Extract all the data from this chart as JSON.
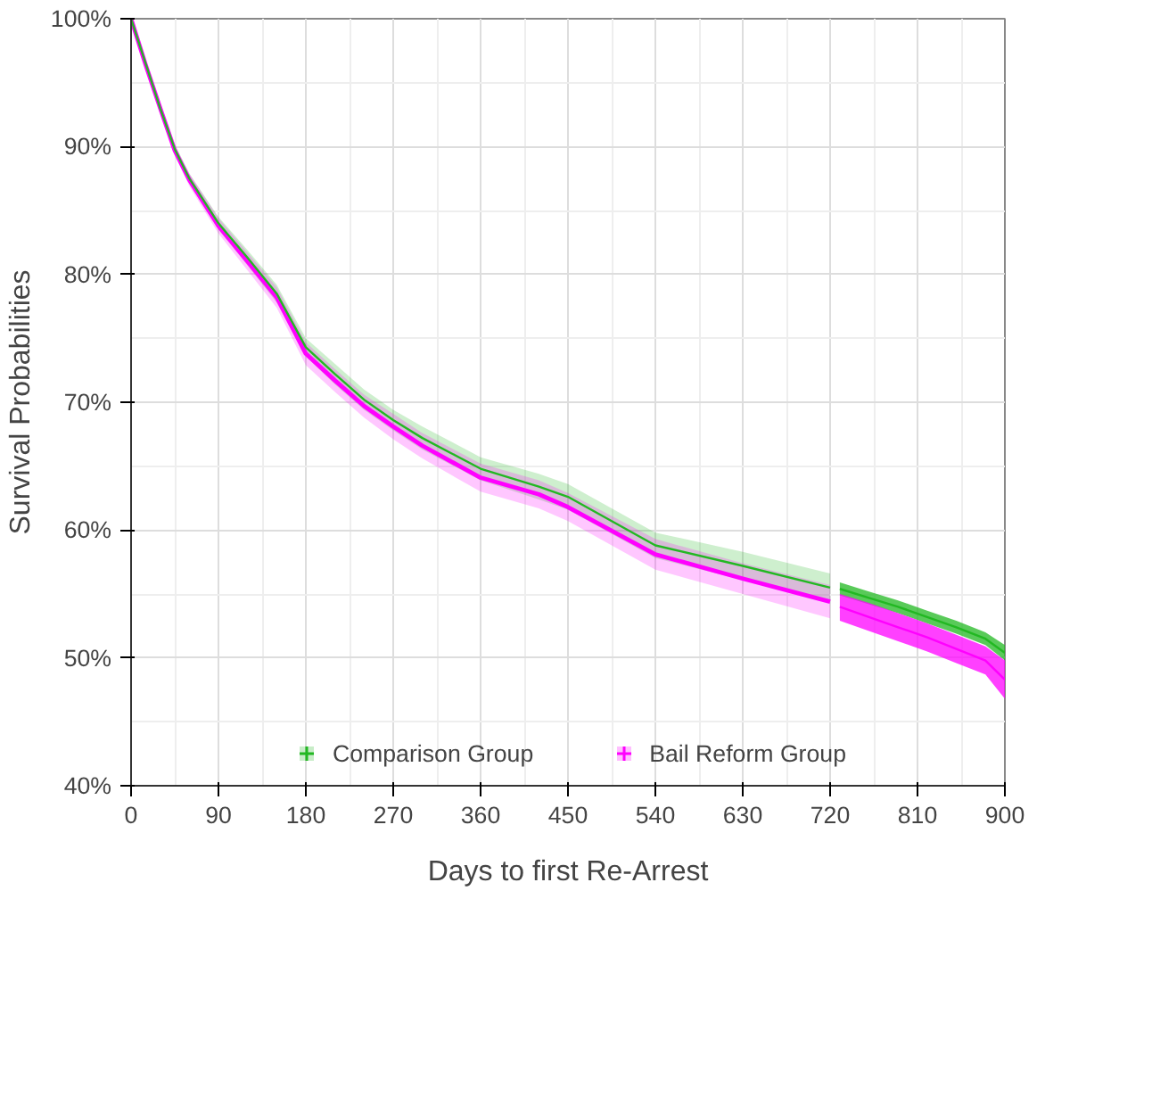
{
  "chart_data": {
    "type": "line",
    "xlabel": "Days to first Re-Arrest",
    "ylabel": "Survival Probabilities",
    "x": [
      0,
      15,
      30,
      45,
      60,
      90,
      120,
      150,
      180,
      210,
      240,
      270,
      300,
      360,
      420,
      450,
      540,
      630,
      720
    ],
    "series": [
      {
        "name": "Comparison Group",
        "color": "#22b822",
        "values": [
          100,
          96.5,
          93,
          89.8,
          87.5,
          84,
          81.3,
          78.5,
          74.3,
          72.2,
          70.2,
          68.6,
          67.2,
          64.8,
          63.4,
          62.6,
          58.8,
          57.2,
          55.5
        ],
        "lower": [
          100,
          96.3,
          92.7,
          89.4,
          87.1,
          83.5,
          80.7,
          77.8,
          73.6,
          71.4,
          69.4,
          67.8,
          66.3,
          63.9,
          62.4,
          61.6,
          57.8,
          56.1,
          54.4
        ],
        "upper": [
          100,
          96.7,
          93.3,
          90.2,
          87.9,
          84.5,
          81.9,
          79.2,
          75.0,
          73.0,
          71.0,
          69.4,
          68.1,
          65.7,
          64.4,
          63.6,
          59.8,
          58.3,
          56.6
        ]
      },
      {
        "name": "Bail Reform Group",
        "color": "#ff00ff",
        "values": [
          100,
          96.4,
          93,
          89.7,
          87.4,
          83.8,
          81,
          78.2,
          73.8,
          71.7,
          69.7,
          68.1,
          66.6,
          64.1,
          62.8,
          61.8,
          58.1,
          56.2,
          54.4
        ],
        "lower": [
          100,
          96.2,
          92.7,
          89.3,
          86.9,
          83.2,
          80.3,
          77.4,
          72.9,
          70.8,
          68.8,
          67.1,
          65.6,
          63.0,
          61.7,
          60.7,
          56.9,
          55.0,
          53.1
        ],
        "upper": [
          100,
          96.6,
          93.3,
          90.1,
          87.9,
          84.4,
          81.7,
          79.0,
          74.7,
          72.6,
          70.6,
          69.1,
          67.6,
          65.2,
          63.9,
          62.9,
          59.3,
          57.4,
          55.7
        ]
      },
      {
        "color": "#22b822",
        "x": [
          730,
          760,
          790,
          820,
          850,
          880,
          900
        ],
        "values": [
          55.4,
          54.7,
          54.0,
          53.2,
          52.4,
          51.5,
          50.4
        ],
        "lower": [
          54.9,
          54.2,
          53.5,
          52.7,
          51.9,
          51.0,
          49.8
        ],
        "upper": [
          55.9,
          55.2,
          54.5,
          53.7,
          52.9,
          52.0,
          51.0
        ]
      },
      {
        "color": "#ff00ff",
        "x": [
          730,
          760,
          790,
          820,
          850,
          880,
          900
        ],
        "values": [
          54.0,
          53.2,
          52.4,
          51.6,
          50.7,
          49.8,
          48.3
        ],
        "lower": [
          52.9,
          52.1,
          51.3,
          50.5,
          49.6,
          48.7,
          46.8
        ],
        "upper": [
          55.0,
          54.3,
          53.5,
          52.7,
          51.8,
          50.9,
          49.8
        ]
      }
    ],
    "xlim": [
      0,
      900
    ],
    "xticks": [
      0,
      90,
      180,
      270,
      360,
      450,
      540,
      630,
      720,
      810,
      900
    ],
    "ylim": [
      40,
      100
    ],
    "yticks": [
      {
        "value": 40,
        "label": "40%"
      },
      {
        "value": 50,
        "label": "50%"
      },
      {
        "value": 60,
        "label": "60%"
      },
      {
        "value": 70,
        "label": "70%"
      },
      {
        "value": 80,
        "label": "80%"
      },
      {
        "value": 90,
        "label": "90%"
      },
      {
        "value": 100,
        "label": "100%"
      }
    ],
    "grid": true,
    "legend": "bottom",
    "marker": "none",
    "line_style": "solid"
  }
}
